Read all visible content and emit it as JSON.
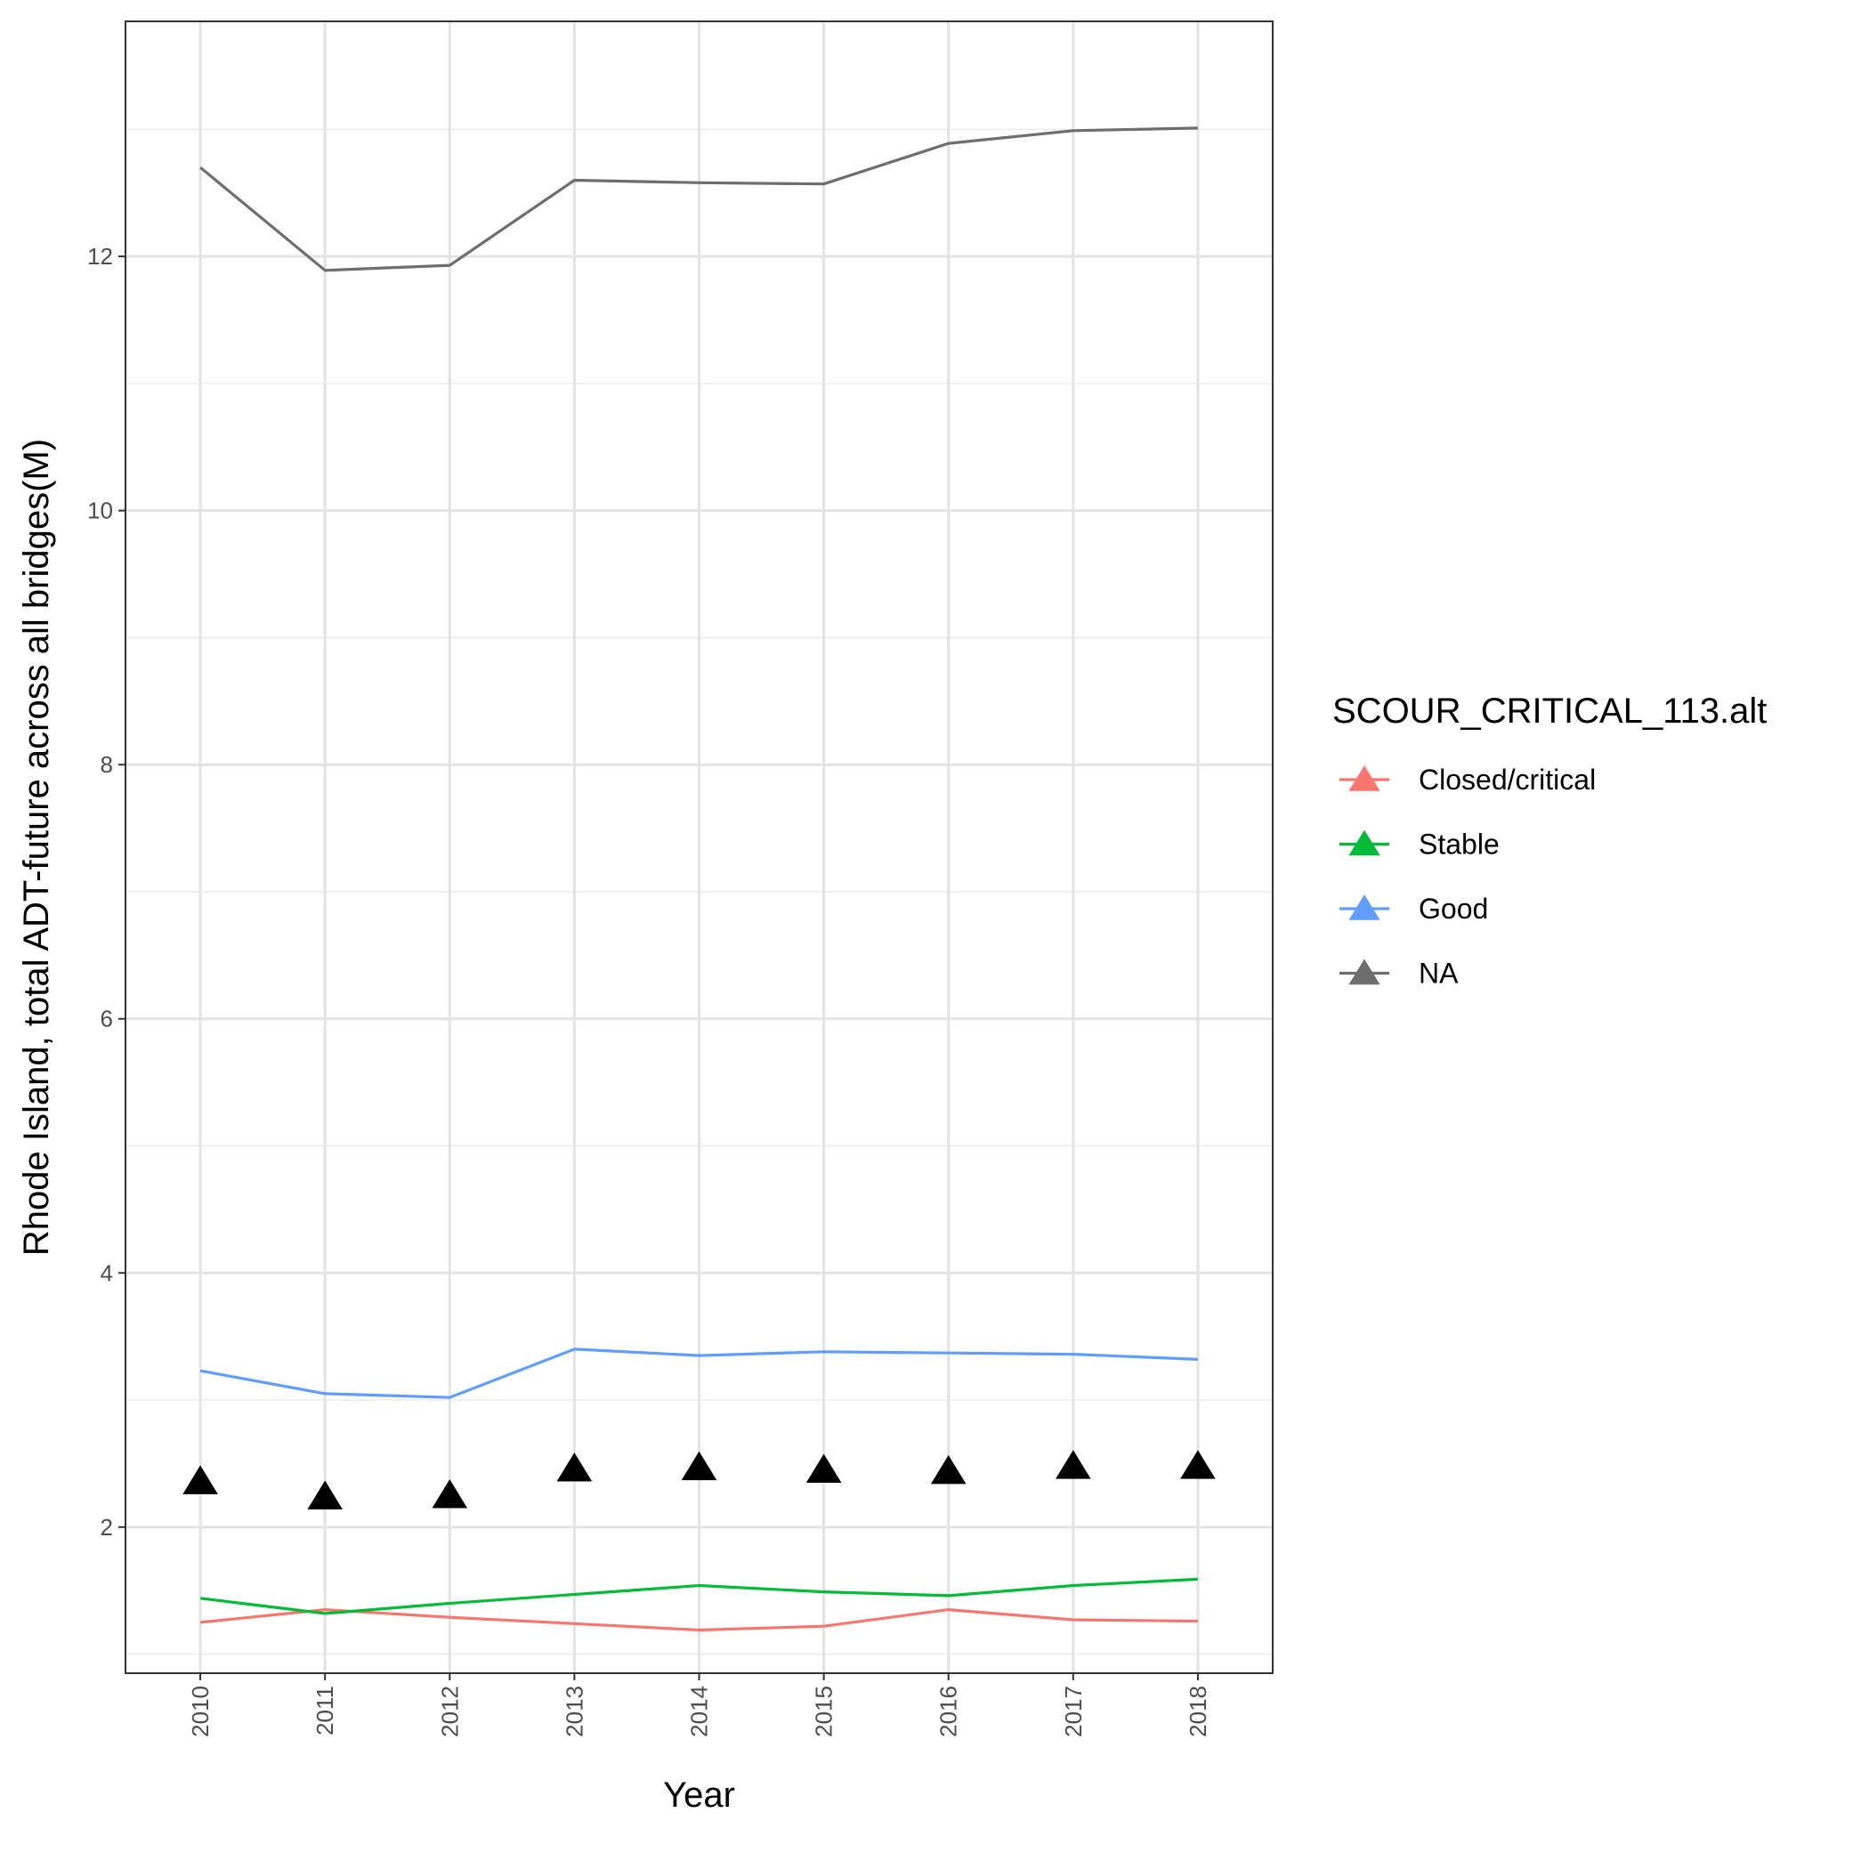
{
  "chart_data": {
    "type": "line",
    "xlabel": "Year",
    "ylabel": "Rhode Island, total ADT-future across all bridges(M)",
    "x": [
      2010,
      2011,
      2012,
      2013,
      2014,
      2015,
      2016,
      2017,
      2018
    ],
    "x_tick_labels": [
      "2010",
      "2011",
      "2012",
      "2013",
      "2014",
      "2015",
      "2016",
      "2017",
      "2018"
    ],
    "yticks": [
      2,
      4,
      6,
      8,
      10,
      12
    ],
    "y_tick_labels": [
      "2",
      "4",
      "6",
      "8",
      "10",
      "12"
    ],
    "ylim": [
      0.85,
      13.85
    ],
    "grid": true,
    "legend": {
      "title": "SCOUR_CRITICAL_113.alt",
      "placement": "right"
    },
    "series": [
      {
        "name": "Closed/critical",
        "color": "#F8766D",
        "marker": "line",
        "values": [
          1.25,
          1.35,
          1.29,
          1.24,
          1.19,
          1.22,
          1.35,
          1.27,
          1.26
        ]
      },
      {
        "name": "Stable",
        "color": "#00BA38",
        "marker": "line",
        "values": [
          1.44,
          1.32,
          1.4,
          1.47,
          1.54,
          1.49,
          1.46,
          1.54,
          1.59
        ]
      },
      {
        "name": "Good",
        "color": "#619CFF",
        "marker": "line",
        "values": [
          3.23,
          3.05,
          3.02,
          3.4,
          3.35,
          3.38,
          3.37,
          3.36,
          3.32
        ]
      },
      {
        "name": "NA",
        "color": "#6E6E6E",
        "marker": "line",
        "values": [
          12.7,
          11.89,
          11.93,
          12.6,
          12.58,
          12.57,
          12.89,
          12.99,
          13.01
        ]
      },
      {
        "name": "",
        "color": "#000000",
        "marker": "triangle",
        "values": [
          2.36,
          2.24,
          2.25,
          2.46,
          2.47,
          2.45,
          2.44,
          2.48,
          2.48
        ]
      }
    ]
  }
}
